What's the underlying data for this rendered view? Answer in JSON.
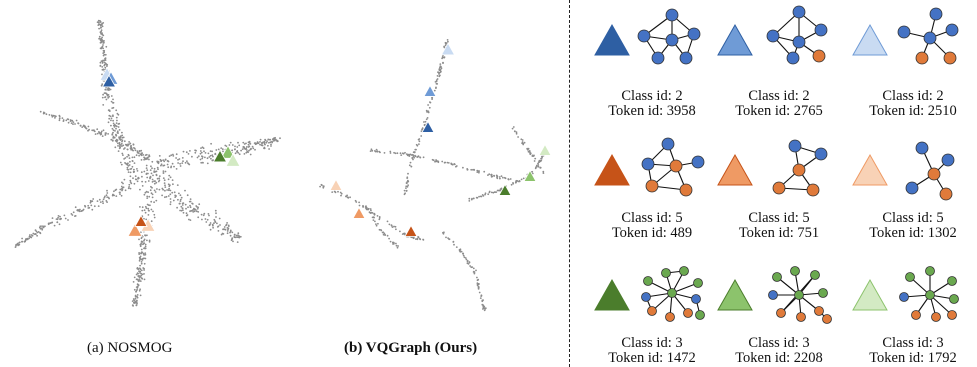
{
  "panels": {
    "a_caption": "(a) NOSMOG",
    "b_caption": "(b) VQGraph (Ours)"
  },
  "colors": {
    "blue": [
      "#2e5fa3",
      "#6f9bd6",
      "#c9dbf2"
    ],
    "orange": [
      "#c65318",
      "#ef9a64",
      "#f8d2b6"
    ],
    "green": [
      "#4b7d2c",
      "#8cc36c",
      "#d3eac3"
    ],
    "node_blue": "#4472c4",
    "node_orange": "#e07a3a",
    "node_green": "#6aa84f",
    "point": "#8c8c8c"
  },
  "tokens": [
    {
      "class_line": "Class id: 2",
      "token_line": "Token id: 3958"
    },
    {
      "class_line": "Class id: 2",
      "token_line": "Token id: 2765"
    },
    {
      "class_line": "Class id: 2",
      "token_line": "Token id: 2510"
    },
    {
      "class_line": "Class id: 5",
      "token_line": "Token id: 489"
    },
    {
      "class_line": "Class id: 5",
      "token_line": "Token id: 751"
    },
    {
      "class_line": "Class id: 5",
      "token_line": "Token id: 1302"
    },
    {
      "class_line": "Class id: 3",
      "token_line": "Token id: 1472"
    },
    {
      "class_line": "Class id: 3",
      "token_line": "Token id: 2208"
    },
    {
      "class_line": "Class id: 3",
      "token_line": "Token id: 1792"
    }
  ]
}
